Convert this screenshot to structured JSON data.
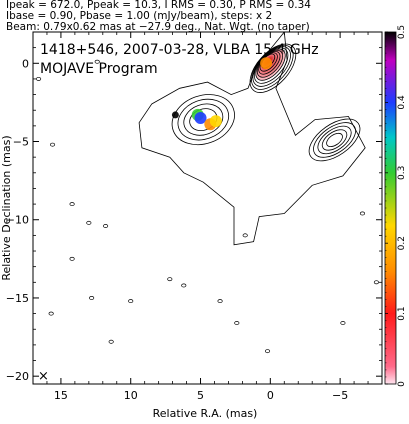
{
  "header": {
    "line1": "Ipeak = 672.0, Ppeak = 10.3, I RMS = 0.30, P RMS = 0.34",
    "line2": "Ibase = 0.90, Pbase = 1.00 (mJy/beam), steps: x 2",
    "line3": "Beam: 0.79x0.62 mas at −27.9 deg., Nat. Wgt. (no taper)"
  },
  "chart_data": {
    "type": "heatmap",
    "title": "1418+546, 2007-03-28, VLBA 15.4 GHz",
    "subtitle": "MOJAVE Program",
    "xlabel": "Relative R.A. (mas)",
    "ylabel": "Relative Declination (mas)",
    "xlim": [
      17,
      -8
    ],
    "ylim": [
      -20.5,
      2
    ],
    "x_ticks": [
      "15",
      "10",
      "5",
      "0",
      "−5"
    ],
    "x_tick_values": [
      15,
      10,
      5,
      0,
      -5
    ],
    "y_ticks": [
      "0",
      "−5",
      "−10",
      "−15",
      "−20"
    ],
    "y_tick_values": [
      0,
      -5,
      -10,
      -15,
      -20
    ],
    "colorbar": {
      "range": [
        0,
        0.5
      ],
      "ticks": [
        "0",
        "0.1",
        "0.2",
        "0.3",
        "0.4",
        "0.5"
      ],
      "tick_values": [
        0,
        0.1,
        0.2,
        0.3,
        0.4,
        0.5
      ]
    },
    "contours": {
      "core": {
        "x": 0.2,
        "y": 0.2,
        "levels": 9
      },
      "inner_jet": {
        "x": 4.8,
        "y": -3.6,
        "levels": 4
      },
      "outer_component": {
        "x": -4.6,
        "y": -4.9,
        "levels": 5
      }
    },
    "polarized_regions": [
      {
        "x": 0.3,
        "y": 0.0,
        "fractional_pol": 0.16
      },
      {
        "x": 5.2,
        "y": -3.3,
        "fractional_pol": 0.34
      },
      {
        "x": 5.0,
        "y": -3.5,
        "fractional_pol": 0.42
      },
      {
        "x": 4.3,
        "y": -3.9,
        "fractional_pol": 0.22
      },
      {
        "x": 3.9,
        "y": -3.7,
        "fractional_pol": 0.28
      },
      {
        "x": 6.8,
        "y": -3.3,
        "fractional_pol": 0.5
      }
    ],
    "beam_marker": {
      "label": "×"
    }
  },
  "colors": {
    "contour": "#000000",
    "frame": "#000000"
  }
}
